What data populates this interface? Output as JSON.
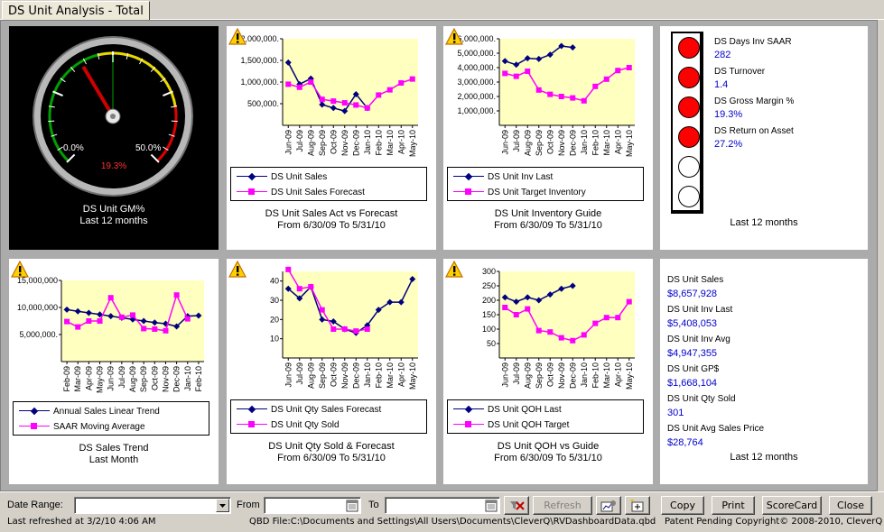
{
  "tab": {
    "title": "DS Unit Analysis - Total"
  },
  "gauge": {
    "title": "DS Unit GM%",
    "subtitle": "Last 12 months",
    "min_label": "0.0%",
    "max_label": "50.0%",
    "value_label": "19.3%",
    "value_fraction": 0.386
  },
  "charts": [
    {
      "id": "sales",
      "caption_line1": "DS Unit Sales Act vs Forecast",
      "caption_line2": "From 6/30/09 To 5/31/10",
      "legend": [
        "DS Unit Sales",
        "DS Unit Sales Forecast"
      ],
      "colors": [
        "#000080",
        "#ff00ff"
      ],
      "chart_data": {
        "type": "line",
        "categories": [
          "Jun-09",
          "Jul-09",
          "Aug-09",
          "Sep-09",
          "Oct-09",
          "Nov-09",
          "Dec-09",
          "Jan-10",
          "Feb-10",
          "Mar-10",
          "Apr-10",
          "May-10"
        ],
        "ylim": [
          0,
          2000000
        ],
        "yticks": [
          "2,000,000.",
          "1,500,000.",
          "1,000,000.",
          "500,000."
        ],
        "ytick_values": [
          2000000,
          1500000,
          1000000,
          500000
        ],
        "series": [
          {
            "name": "DS Unit Sales",
            "values": [
              1450000,
              950000,
              1080000,
              480000,
              400000,
              330000,
              720000,
              400000,
              null,
              null,
              null,
              null
            ]
          },
          {
            "name": "DS Unit Sales Forecast",
            "values": [
              950000,
              880000,
              1000000,
              600000,
              560000,
              520000,
              470000,
              400000,
              700000,
              820000,
              980000,
              1070000
            ]
          }
        ]
      }
    },
    {
      "id": "inventory",
      "caption_line1": "DS Unit Inventory Guide",
      "caption_line2": "From 6/30/09 To 5/31/10",
      "legend": [
        "DS Unit Inv Last",
        "DS Unit Target Inventory"
      ],
      "colors": [
        "#000080",
        "#ff00ff"
      ],
      "chart_data": {
        "type": "line",
        "categories": [
          "Jun-09",
          "Jul-09",
          "Aug-09",
          "Sep-09",
          "Oct-09",
          "Nov-09",
          "Dec-09",
          "Jan-10",
          "Feb-10",
          "Mar-10",
          "Apr-10",
          "May-10"
        ],
        "ylim": [
          0,
          6000000
        ],
        "yticks": [
          "6,000,000.",
          "5,000,000.",
          "4,000,000.",
          "3,000,000.",
          "2,000,000.",
          "1,000,000."
        ],
        "ytick_values": [
          6000000,
          5000000,
          4000000,
          3000000,
          2000000,
          1000000
        ],
        "series": [
          {
            "name": "DS Unit Inv Last",
            "values": [
              4450000,
              4200000,
              4650000,
              4600000,
              4900000,
              5500000,
              5400000,
              null,
              null,
              null,
              null,
              null
            ]
          },
          {
            "name": "DS Unit Target Inventory",
            "values": [
              3600000,
              3400000,
              3750000,
              2450000,
              2150000,
              2000000,
              1900000,
              1700000,
              2700000,
              3200000,
              3800000,
              4000000
            ]
          }
        ]
      }
    },
    {
      "id": "trend",
      "caption_line1": "DS Sales Trend",
      "caption_line2": "Last Month",
      "legend": [
        "Annual Sales Linear Trend",
        "SAAR Moving Average"
      ],
      "colors": [
        "#000080",
        "#ff00ff"
      ],
      "chart_data": {
        "type": "line",
        "categories": [
          "Feb-09",
          "Mar-09",
          "Apr-09",
          "May-09",
          "Jun-09",
          "Jul-09",
          "Aug-09",
          "Sep-09",
          "Oct-09",
          "Nov-09",
          "Dec-09",
          "Jan-10",
          "Feb-10"
        ],
        "ylim": [
          0,
          15000000
        ],
        "yticks": [
          "15,000,000",
          "10,000,000",
          "5,000,000."
        ],
        "ytick_values": [
          15000000,
          10000000,
          5000000
        ],
        "series": [
          {
            "name": "Annual Sales Linear Trend",
            "values": [
              9600000,
              9300000,
              9000000,
              8700000,
              8400000,
              8100000,
              7800000,
              7500000,
              7200000,
              7000000,
              6500000,
              8400000,
              8500000
            ]
          },
          {
            "name": "SAAR Moving Average",
            "values": [
              7400000,
              6400000,
              7500000,
              7500000,
              11800000,
              8200000,
              8600000,
              6100000,
              6000000,
              5700000,
              12300000,
              7900000,
              null
            ]
          }
        ]
      }
    },
    {
      "id": "qty",
      "caption_line1": "DS Unit Qty Sold & Forecast",
      "caption_line2": "From 6/30/09 To 5/31/10",
      "legend": [
        "DS Unit Qty Sales Forecast",
        "DS Unit Qty Sold"
      ],
      "colors": [
        "#000080",
        "#ff00ff"
      ],
      "chart_data": {
        "type": "line",
        "categories": [
          "Jun-09",
          "Jul-09",
          "Aug-09",
          "Sep-09",
          "Oct-09",
          "Nov-09",
          "Dec-09",
          "Jan-10",
          "Feb-10",
          "Mar-10",
          "Apr-10",
          "May-10"
        ],
        "ylim": [
          0,
          45
        ],
        "yticks": [
          "40",
          "30",
          "20",
          "10"
        ],
        "ytick_values": [
          40,
          30,
          20,
          10
        ],
        "series": [
          {
            "name": "DS Unit Qty Sales Forecast",
            "values": [
              36,
              31,
              37,
              20,
              19,
              15,
              13,
              17,
              25,
              29,
              29,
              41
            ]
          },
          {
            "name": "DS Unit Qty Sold",
            "values": [
              46,
              36,
              37,
              25,
              15,
              15,
              14,
              15,
              null,
              null,
              null,
              null
            ]
          }
        ]
      }
    },
    {
      "id": "qoh",
      "caption_line1": "DS Unit QOH vs Guide",
      "caption_line2": "From 6/30/09 To 5/31/10",
      "legend": [
        "DS Unit QOH Last",
        "DS Unit QOH Target"
      ],
      "colors": [
        "#000080",
        "#ff00ff"
      ],
      "chart_data": {
        "type": "line",
        "categories": [
          "Jun-09",
          "Jul-09",
          "Aug-09",
          "Sep-09",
          "Oct-09",
          "Nov-09",
          "Dec-09",
          "Jan-10",
          "Feb-10",
          "Mar-10",
          "Apr-10",
          "May-10"
        ],
        "ylim": [
          0,
          300
        ],
        "yticks": [
          "300",
          "250",
          "200",
          "150",
          "100",
          "50"
        ],
        "ytick_values": [
          300,
          250,
          200,
          150,
          100,
          50
        ],
        "series": [
          {
            "name": "DS Unit QOH Last",
            "values": [
              210,
              195,
              210,
              200,
              220,
              240,
              250,
              null,
              null,
              null,
              null,
              null
            ]
          },
          {
            "name": "DS Unit QOH Target",
            "values": [
              175,
              150,
              170,
              95,
              90,
              70,
              60,
              80,
              120,
              140,
              140,
              195
            ]
          }
        ]
      }
    }
  ],
  "scorecard": {
    "items": [
      {
        "label": "DS Days Inv SAAR",
        "value": "282",
        "light": "red"
      },
      {
        "label": "DS Turnover",
        "value": "1.4",
        "light": "red"
      },
      {
        "label": "DS Gross Margin %",
        "value": "19.3%",
        "light": "red"
      },
      {
        "label": "DS Return on Asset",
        "value": "27.2%",
        "light": "red"
      }
    ],
    "empty_lights": 2,
    "footer": "Last 12 months"
  },
  "summary": {
    "items": [
      {
        "label": "DS Unit Sales",
        "value": "$8,657,928"
      },
      {
        "label": "DS Unit Inv Last",
        "value": "$5,408,053"
      },
      {
        "label": "DS Unit Inv Avg",
        "value": "$4,947,355"
      },
      {
        "label": "DS Unit GP$",
        "value": "$1,668,104"
      },
      {
        "label": "DS Unit Qty Sold",
        "value": "301"
      },
      {
        "label": "DS Unit Avg Sales Price",
        "value": "$28,764"
      }
    ],
    "footer": "Last 12 months"
  },
  "toolbar": {
    "date_range_label": "Date Range:",
    "from_label": "From",
    "to_label": "To",
    "refresh_label": "Refresh",
    "copy_label": "Copy",
    "print_label": "Print",
    "scorecard_label": "ScoreCard",
    "close_label": "Close"
  },
  "status": {
    "refreshed": "Last refreshed at 3/2/10 4:06 AM",
    "file": "QBD File:C:\\Documents and Settings\\All Users\\Documents\\CleverQ\\RVDashboardData.qbd",
    "copyright": "Patent Pending Copyright© 2008-2010, CleverQ"
  }
}
